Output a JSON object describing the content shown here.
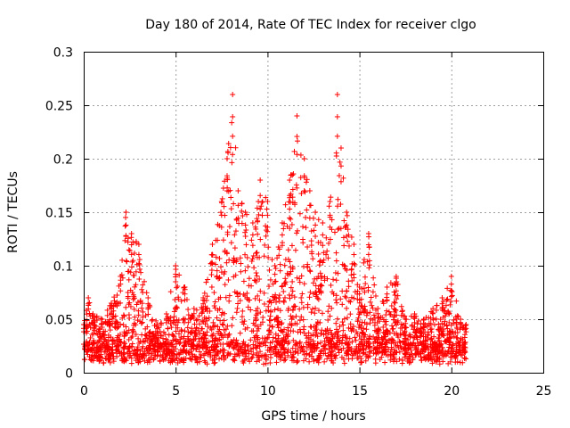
{
  "chart_data": {
    "type": "scatter",
    "title": "Day 180 of 2014, Rate Of TEC Index for receiver clgo",
    "xlabel": "GPS time / hours",
    "ylabel": "ROTI / TECUs",
    "xlim": [
      0,
      25
    ],
    "ylim": [
      0,
      0.3
    ],
    "xticks": [
      "0",
      "5",
      "10",
      "15",
      "20",
      "25"
    ],
    "yticks": [
      "0",
      "0.05",
      "0.1",
      "0.15",
      "0.2",
      "0.25",
      "0.3"
    ],
    "grid": true,
    "marker": "+",
    "color": "#ff0000",
    "series": [
      {
        "name": "ROTI",
        "envelope_note": "approximate upper envelope of scattered points (hour, ROTI)",
        "x": [
          0.0,
          0.25,
          0.5,
          1.0,
          1.5,
          2.0,
          2.3,
          2.6,
          3.0,
          3.5,
          4.0,
          4.5,
          5.0,
          5.5,
          6.0,
          6.5,
          7.0,
          7.5,
          7.8,
          8.1,
          8.4,
          8.8,
          9.2,
          9.6,
          10.0,
          10.4,
          10.8,
          11.2,
          11.6,
          12.0,
          12.3,
          12.6,
          13.0,
          13.4,
          13.8,
          14.0,
          14.3,
          14.7,
          15.0,
          15.5,
          16.0,
          16.5,
          17.0,
          17.5,
          18.0,
          18.5,
          19.0,
          19.5,
          20.0,
          20.5,
          20.8
        ],
        "y": [
          0.045,
          0.07,
          0.055,
          0.05,
          0.065,
          0.09,
          0.15,
          0.13,
          0.12,
          0.07,
          0.045,
          0.055,
          0.1,
          0.08,
          0.06,
          0.07,
          0.12,
          0.16,
          0.2,
          0.26,
          0.17,
          0.15,
          0.14,
          0.18,
          0.16,
          0.1,
          0.14,
          0.18,
          0.24,
          0.2,
          0.17,
          0.15,
          0.14,
          0.16,
          0.26,
          0.21,
          0.15,
          0.12,
          0.08,
          0.13,
          0.06,
          0.08,
          0.09,
          0.05,
          0.055,
          0.05,
          0.06,
          0.07,
          0.09,
          0.05,
          0.045
        ]
      }
    ]
  }
}
